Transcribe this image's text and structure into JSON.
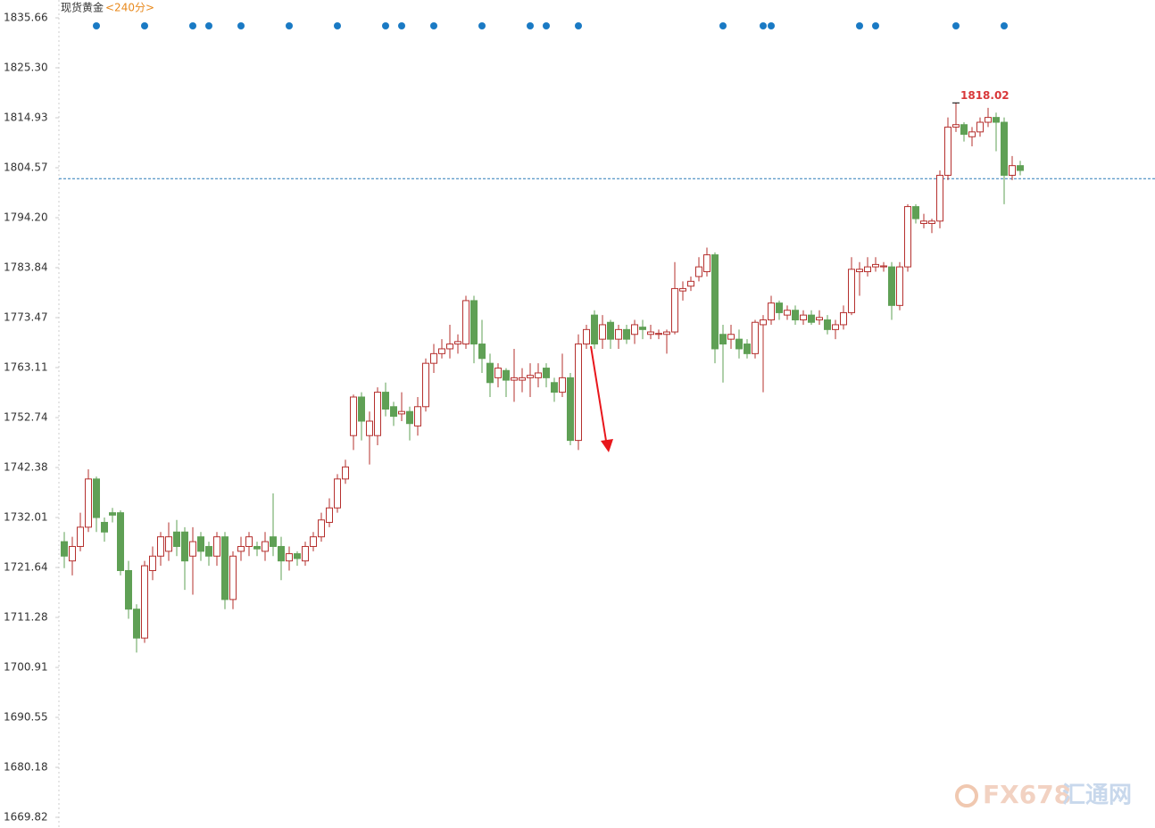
{
  "chart_data": {
    "type": "candlestick",
    "title": "现货黄金",
    "subtitle": "<240分>",
    "watermark": "FX678",
    "watermark_cn": "汇通网",
    "up_color": "#b5302e",
    "down_color": "#5fa055",
    "reference_line": 1802.3,
    "reference_color": "#2a7ab8",
    "ylim": [
      1669.82,
      1835.66
    ],
    "yticks": [
      1669.82,
      1680.18,
      1690.55,
      1700.91,
      1711.28,
      1721.64,
      1732.01,
      1742.38,
      1752.74,
      1763.11,
      1773.47,
      1783.84,
      {
        "value": 1794.2,
        "label": "1794.20"
      },
      1804.57,
      1814.93,
      {
        "value": 1825.3,
        "label": "1825.30"
      },
      1835.66
    ],
    "grid": false,
    "open": [
      1727,
      1723,
      1726,
      1730,
      1740,
      1731,
      1733,
      1733,
      1721,
      1713,
      1707,
      1721,
      1724,
      1725,
      1729,
      1729,
      1724,
      1728,
      1726,
      1724,
      1728,
      1715,
      1725,
      1726,
      1726,
      1725,
      1728,
      1726,
      1723,
      1724.5,
      1723,
      1726,
      1728,
      1731,
      1734,
      1740,
      1749,
      1757,
      1749,
      1749,
      1758,
      1755,
      1753.5,
      1754,
      1751,
      1755,
      1764,
      1766,
      1767,
      1768,
      1768,
      1777,
      1768,
      1764,
      1761,
      1762.5,
      1760.5,
      1760.5,
      1761,
      1761,
      1763,
      1760,
      1758,
      1761,
      1748,
      1768,
      1774,
      1769,
      1772.5,
      1769,
      1771,
      1770,
      1771.5,
      1770,
      1770,
      1770,
      1770.5,
      1779,
      1780,
      1782,
      1783,
      1786.5,
      1770,
      1769,
      1769,
      1768,
      1766,
      1772,
      1773,
      1776.5,
      1774,
      1775,
      1773,
      1774,
      1773,
      1773,
      1771,
      1772,
      1774.5,
      1783,
      1783,
      1784,
      1784,
      1784,
      1776,
      1784,
      1796.5,
      1793,
      1793,
      1793.5,
      1803,
      1813,
      1813.5,
      1811,
      1812,
      1814,
      1815,
      1814,
      1803,
      1805
    ],
    "close": [
      1724,
      1726,
      1730,
      1740,
      1732,
      1729,
      1732.5,
      1721,
      1713,
      1707,
      1722,
      1724,
      1728,
      1728,
      1726,
      1723,
      1727,
      1725,
      1724,
      1728,
      1715,
      1724,
      1726,
      1728,
      1725.5,
      1727,
      1726,
      1723,
      1724.5,
      1723.5,
      1726,
      1728,
      1731.5,
      1734,
      1740,
      1742.5,
      1757,
      1752,
      1752,
      1758,
      1754.5,
      1753,
      1754,
      1751.5,
      1755,
      1764,
      1766,
      1767,
      1768,
      1768.5,
      1777,
      1768,
      1765,
      1760,
      1763,
      1760.5,
      1761,
      1761,
      1761.5,
      1762,
      1761,
      1758,
      1761,
      1748,
      1768,
      1771,
      1768,
      1772,
      1769,
      1771,
      1769,
      1772,
      1771,
      1770.5,
      1770.2,
      1770.5,
      1779.5,
      1779.5,
      1781,
      1784,
      1786.5,
      1767,
      1768,
      1770,
      1767,
      1766,
      1772.5,
      1773,
      1776.5,
      1774.5,
      1775,
      1773,
      1774,
      1772.5,
      1773.5,
      1771,
      1772,
      1774.5,
      1783.5,
      1783.5,
      1784,
      1784.5,
      1784.2,
      1776,
      1784,
      1796.5,
      1794,
      1793.5,
      1793.5,
      1803,
      1813,
      1813.5,
      1811.5,
      1812,
      1814,
      1815,
      1814,
      1803,
      1805,
      1804
    ],
    "high": [
      1729,
      1728,
      1733,
      1742,
      1740.5,
      1732,
      1734,
      1733.5,
      1723,
      1714,
      1723,
      1726,
      1729,
      1731,
      1731.5,
      1730,
      1730,
      1729,
      1727,
      1729,
      1729,
      1725,
      1728,
      1729,
      1727,
      1729,
      1737,
      1728,
      1726,
      1725,
      1727,
      1729,
      1733,
      1736,
      1741,
      1744,
      1757.5,
      1758,
      1754,
      1759,
      1760,
      1756,
      1758,
      1755,
      1757,
      1765,
      1768,
      1769,
      1772,
      1770,
      1778,
      1778,
      1773,
      1766,
      1764,
      1763,
      1767,
      1763,
      1764,
      1764,
      1764,
      1761,
      1766,
      1762,
      1770,
      1772,
      1775,
      1774,
      1773,
      1772,
      1772,
      1773,
      1773,
      1772,
      1771,
      1771,
      1785,
      1781,
      1782,
      1786,
      1788,
      1787,
      1772,
      1772,
      1771,
      1769,
      1773,
      1774,
      1778,
      1777,
      1776,
      1776,
      1775,
      1775,
      1775,
      1774,
      1773,
      1776,
      1786,
      1785,
      1786,
      1786,
      1785,
      1785,
      1785,
      1797,
      1797,
      1795,
      1794,
      1804,
      1815,
      1818.02,
      1814,
      1813,
      1815,
      1817,
      1816,
      1815,
      1807,
      1806
    ],
    "low": [
      1721.5,
      1720,
      1725,
      1729,
      1729,
      1727,
      1731,
      1720,
      1711,
      1704,
      1706,
      1719,
      1722,
      1723,
      1724,
      1717,
      1716,
      1723,
      1722,
      1722,
      1713,
      1713,
      1723,
      1724,
      1724,
      1723,
      1724,
      1719,
      1721,
      1722,
      1722,
      1725,
      1727,
      1730,
      1733,
      1739,
      1746,
      1748,
      1743,
      1747,
      1753,
      1751,
      1752,
      1748,
      1749,
      1754,
      1762,
      1765,
      1765,
      1766,
      1767,
      1764,
      1762,
      1757,
      1759,
      1757,
      1756,
      1758,
      1757,
      1759,
      1759,
      1756,
      1757,
      1747,
      1746,
      1767,
      1767,
      1767,
      1767,
      1767,
      1768,
      1768,
      1769,
      1769,
      1769,
      1766,
      1770,
      1777,
      1779,
      1781,
      1782,
      1764,
      1760,
      1767,
      1765,
      1765,
      1765,
      1758,
      1772,
      1773,
      1773,
      1772,
      1772,
      1772,
      1772,
      1770,
      1769,
      1771,
      1774,
      1778,
      1782,
      1783,
      1783,
      1773,
      1775,
      1783,
      1793,
      1792,
      1791,
      1792,
      1802,
      1812,
      1810,
      1809,
      1811,
      1813,
      1808,
      1797,
      1802,
      1803
    ]
  }
}
